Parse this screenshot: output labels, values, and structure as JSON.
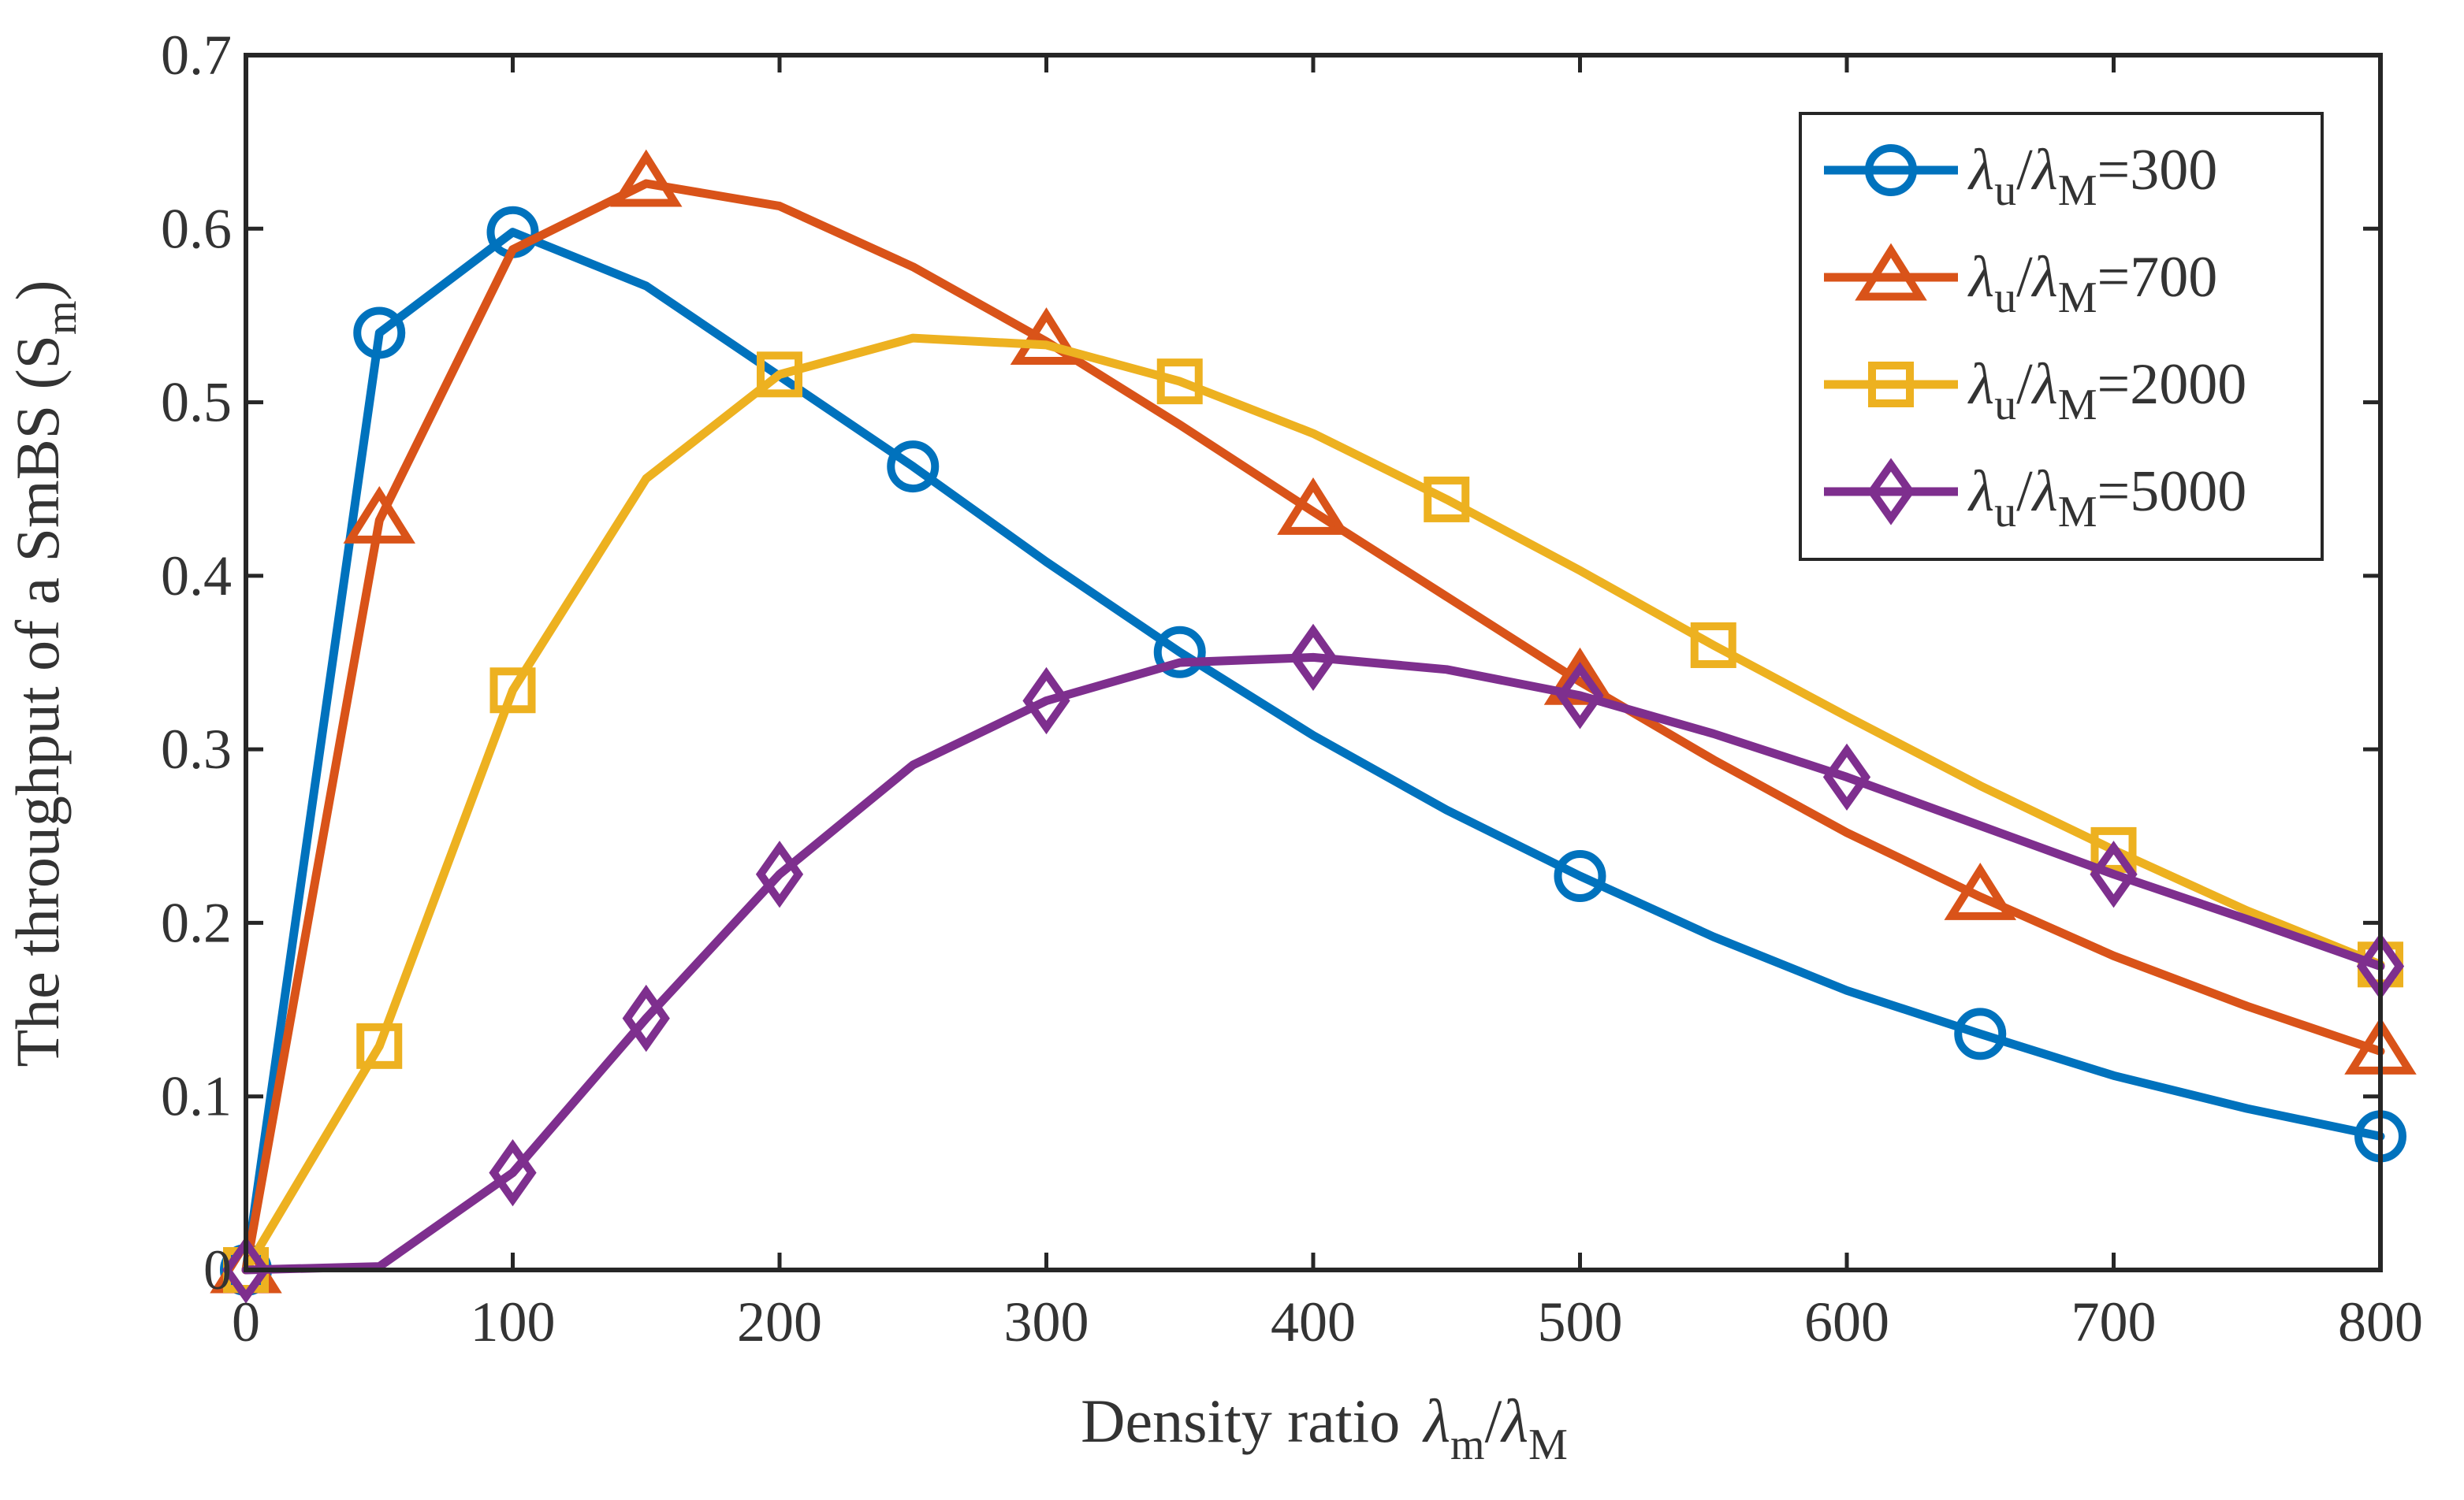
{
  "chart_data": {
    "type": "line",
    "xlabel": {
      "main": "Density ratio",
      "lambda": "λ",
      "sub1": "m",
      "slash": "/",
      "sub2": "M"
    },
    "ylabel": {
      "main": "The throughput of a SmBS (S",
      "sub": "m",
      "close": ")"
    },
    "xlim": [
      0,
      800
    ],
    "ylim": [
      0,
      0.7
    ],
    "xticks": [
      0,
      100,
      200,
      300,
      400,
      500,
      600,
      700,
      800
    ],
    "xtick_labels": [
      "0",
      "100",
      "200",
      "300",
      "400",
      "500",
      "600",
      "700",
      "800"
    ],
    "yticks": [
      0,
      0.1,
      0.2,
      0.3,
      0.4,
      0.5,
      0.6,
      0.7
    ],
    "ytick_labels": [
      "0",
      "0.1",
      "0.2",
      "0.3",
      "0.4",
      "0.5",
      "0.6",
      "0.7"
    ],
    "grid": false,
    "legend_position": "top-right",
    "x": [
      0,
      50,
      100,
      150,
      200,
      250,
      300,
      350,
      400,
      450,
      500,
      550,
      600,
      650,
      700,
      750,
      800
    ],
    "series": [
      {
        "legend": {
          "lambda": "λ",
          "sub1": "u",
          "slash": "/",
          "sub2": "M",
          "value": "=300"
        },
        "color": "#0072BD",
        "marker": "circle",
        "marker_x": [
          0,
          50,
          100,
          250,
          350,
          500,
          650,
          800
        ],
        "values": [
          0.0,
          0.54,
          0.598,
          0.567,
          0.515,
          0.463,
          0.408,
          0.356,
          0.308,
          0.265,
          0.227,
          0.192,
          0.161,
          0.136,
          0.112,
          0.093,
          0.077
        ]
      },
      {
        "legend": {
          "lambda": "λ",
          "sub1": "u",
          "slash": "/",
          "sub2": "M",
          "value": "=700"
        },
        "color": "#D95319",
        "marker": "triangle",
        "marker_x": [
          0,
          50,
          150,
          300,
          400,
          500,
          650,
          800
        ],
        "values": [
          0.0,
          0.432,
          0.588,
          0.626,
          0.613,
          0.578,
          0.535,
          0.487,
          0.437,
          0.388,
          0.339,
          0.294,
          0.252,
          0.215,
          0.181,
          0.152,
          0.126
        ]
      },
      {
        "legend": {
          "lambda": "λ",
          "sub1": "u",
          "slash": "/",
          "sub2": "M",
          "value": "=2000"
        },
        "color": "#EDB120",
        "marker": "square",
        "marker_x": [
          0,
          50,
          100,
          200,
          350,
          450,
          550,
          700,
          800
        ],
        "values": [
          0.0,
          0.129,
          0.334,
          0.456,
          0.516,
          0.537,
          0.533,
          0.512,
          0.482,
          0.444,
          0.403,
          0.36,
          0.319,
          0.279,
          0.242,
          0.207,
          0.176
        ]
      },
      {
        "legend": {
          "lambda": "λ",
          "sub1": "u",
          "slash": "/",
          "sub2": "M",
          "value": "=5000"
        },
        "color": "#7E2F8E",
        "marker": "diamond",
        "marker_x": [
          0,
          100,
          150,
          200,
          300,
          400,
          500,
          600,
          700,
          800
        ],
        "values": [
          0.0,
          0.002,
          0.056,
          0.145,
          0.228,
          0.291,
          0.328,
          0.35,
          0.353,
          0.346,
          0.331,
          0.309,
          0.284,
          0.256,
          0.228,
          0.202,
          0.175
        ]
      }
    ]
  }
}
